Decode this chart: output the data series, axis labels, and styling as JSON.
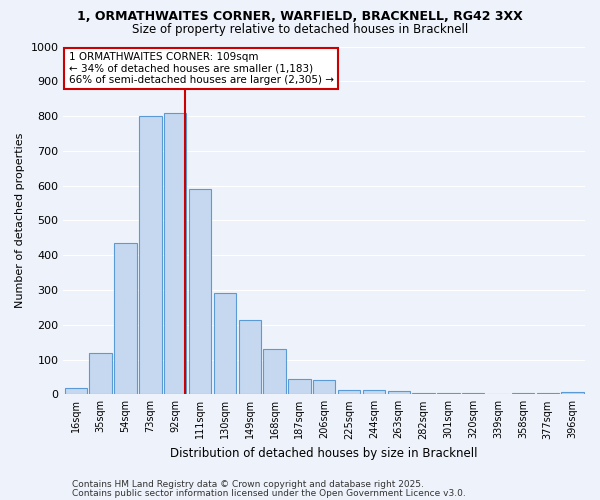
{
  "title_line1": "1, ORMATHWAITES CORNER, WARFIELD, BRACKNELL, RG42 3XX",
  "title_line2": "Size of property relative to detached houses in Bracknell",
  "xlabel": "Distribution of detached houses by size in Bracknell",
  "ylabel": "Number of detached properties",
  "bar_labels": [
    "16sqm",
    "35sqm",
    "54sqm",
    "73sqm",
    "92sqm",
    "111sqm",
    "130sqm",
    "149sqm",
    "168sqm",
    "187sqm",
    "206sqm",
    "225sqm",
    "244sqm",
    "263sqm",
    "282sqm",
    "301sqm",
    "320sqm",
    "339sqm",
    "358sqm",
    "377sqm",
    "396sqm"
  ],
  "bar_values": [
    17,
    120,
    435,
    800,
    810,
    590,
    290,
    215,
    130,
    43,
    42,
    12,
    12,
    10,
    5,
    5,
    5,
    2,
    5,
    5,
    8
  ],
  "bar_color": "#c5d8f0",
  "bar_edge_color": "#5b9bd5",
  "vline_index": 4.89,
  "vline_color": "#cc0000",
  "annotation_text": "1 ORMATHWAITES CORNER: 109sqm\n← 34% of detached houses are smaller (1,183)\n66% of semi-detached houses are larger (2,305) →",
  "annotation_box_color": "#ffffff",
  "annotation_border_color": "#cc0000",
  "footer_line1": "Contains HM Land Registry data © Crown copyright and database right 2025.",
  "footer_line2": "Contains public sector information licensed under the Open Government Licence v3.0.",
  "bg_color": "#eef2fa",
  "grid_color": "#ffffff",
  "ylim": [
    0,
    1000
  ],
  "yticks": [
    0,
    100,
    200,
    300,
    400,
    500,
    600,
    700,
    800,
    900,
    1000
  ]
}
